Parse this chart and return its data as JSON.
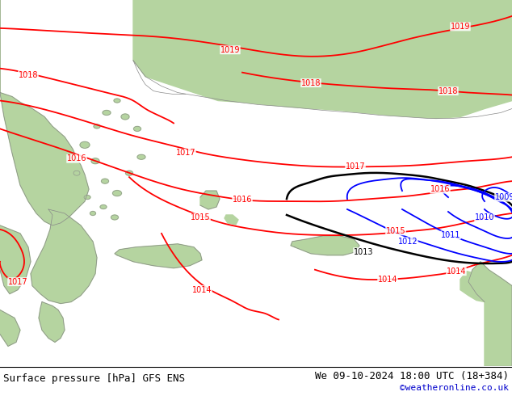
{
  "title_left": "Surface pressure [hPa] GFS ENS",
  "title_right": "We 09-10-2024 18:00 UTC (18+384)",
  "credit": "©weatheronline.co.uk",
  "land_color": "#b5d4a0",
  "sea_color": "#d0d0d0",
  "coast_color": "#888888",
  "red": "#ff0000",
  "black": "#000000",
  "blue": "#0000ff",
  "credit_color": "#0000cc",
  "bottom_text_color": "#000000",
  "font_size_bottom": 9,
  "font_size_labels": 7,
  "figsize": [
    6.34,
    4.9
  ],
  "dpi": 100
}
